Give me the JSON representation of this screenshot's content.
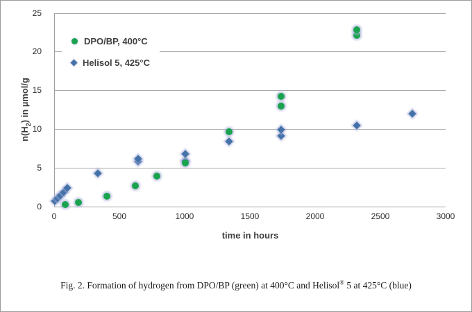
{
  "chart_data": {
    "type": "scatter",
    "title": "",
    "xlabel": "time in hours",
    "ylabel": "n(H2) in µmol/g",
    "xlim": [
      0,
      3000
    ],
    "ylim": [
      0,
      25
    ],
    "xticks": [
      0,
      500,
      1000,
      1500,
      2000,
      2500,
      3000
    ],
    "yticks": [
      0,
      5,
      10,
      15,
      20,
      25
    ],
    "grid": "horizontal",
    "legend_position": "inside-top-left",
    "series": [
      {
        "name": "DPO/BP, 400°C",
        "marker": "circle",
        "color": "#1aa34f",
        "points": [
          [
            85,
            0.25
          ],
          [
            185,
            0.5
          ],
          [
            405,
            1.3
          ],
          [
            620,
            2.7
          ],
          [
            785,
            3.9
          ],
          [
            1005,
            5.6
          ],
          [
            1340,
            9.7
          ],
          [
            1740,
            13.0
          ],
          [
            1740,
            14.2
          ],
          [
            2320,
            22.1
          ],
          [
            2320,
            22.8
          ]
        ]
      },
      {
        "name": "Helisol 5, 425°C",
        "marker": "diamond",
        "color": "#4472a8",
        "points": [
          [
            5,
            0.7
          ],
          [
            25,
            1.05
          ],
          [
            50,
            1.45
          ],
          [
            75,
            1.9
          ],
          [
            100,
            2.4
          ],
          [
            335,
            4.3
          ],
          [
            645,
            5.8
          ],
          [
            645,
            6.2
          ],
          [
            1005,
            5.9
          ],
          [
            1005,
            6.8
          ],
          [
            1340,
            8.4
          ],
          [
            1740,
            9.1
          ],
          [
            1740,
            9.9
          ],
          [
            2320,
            10.5
          ],
          [
            2745,
            12.0
          ]
        ]
      }
    ]
  },
  "ylabel_parts": {
    "pre": "n(H",
    "sub": "2",
    "post": ") in µmol/g"
  },
  "caption": {
    "pre": "Fig. 2. Formation of hydrogen from DPO/BP (green) at 400°C and Helisol",
    "sup": "®",
    "post": " 5 at 425°C (blue)"
  },
  "colors": {
    "green": "#1aa34f",
    "blue": "#4472a8",
    "gridline": "#a9a9a9",
    "text": "#3f3f3f",
    "marker_halo": "#a8addb"
  }
}
